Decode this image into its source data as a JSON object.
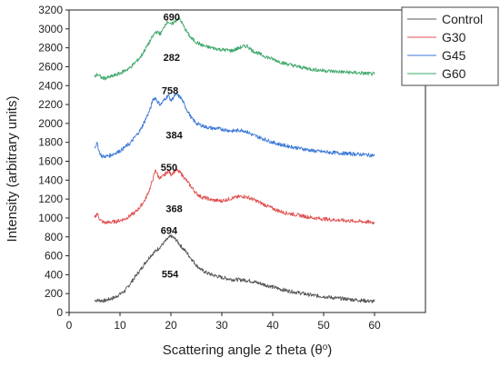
{
  "chart_data": {
    "type": "line",
    "xlabel": "Scattering angle 2 theta (θ",
    "xlabel_sup": "o",
    "xlabel_end": ")",
    "ylabel": "Intensity (arbitrary units)",
    "xlim": [
      0,
      70
    ],
    "ylim": [
      0,
      3200
    ],
    "x_ticks": [
      0,
      10,
      20,
      30,
      40,
      50,
      60
    ],
    "y_ticks": [
      0,
      200,
      400,
      600,
      800,
      1000,
      1200,
      1400,
      1600,
      1800,
      2000,
      2200,
      2400,
      2600,
      2800,
      3000,
      3200
    ],
    "legend_position": "top-right",
    "series": [
      {
        "name": "Control",
        "color": "#555555",
        "x": [
          5,
          7,
          9,
          11,
          13,
          14,
          15,
          16,
          17,
          18,
          19,
          20,
          21,
          22,
          23,
          24,
          25,
          26,
          27,
          28,
          30,
          32,
          34,
          35,
          36,
          38,
          40,
          42,
          45,
          48,
          50,
          52,
          55,
          58,
          60
        ],
        "y": [
          130,
          125,
          160,
          230,
          380,
          450,
          530,
          600,
          650,
          700,
          760,
          810,
          770,
          700,
          640,
          570,
          500,
          450,
          420,
          400,
          370,
          350,
          345,
          340,
          330,
          300,
          270,
          240,
          210,
          180,
          170,
          155,
          140,
          125,
          115
        ]
      },
      {
        "name": "G30",
        "color": "#e05050",
        "x": [
          5,
          5.5,
          6,
          6.5,
          7,
          9,
          11,
          13,
          14,
          15,
          16,
          16.5,
          17,
          17.5,
          18,
          19,
          19.5,
          20,
          21,
          22,
          23,
          24,
          25,
          26,
          27,
          28,
          30,
          32,
          34,
          35,
          36,
          38,
          40,
          42,
          45,
          48,
          50,
          52,
          55,
          58,
          60
        ],
        "y": [
          1000,
          1050,
          990,
          960,
          950,
          960,
          990,
          1060,
          1120,
          1200,
          1330,
          1420,
          1510,
          1440,
          1420,
          1470,
          1500,
          1460,
          1510,
          1470,
          1400,
          1330,
          1260,
          1220,
          1210,
          1190,
          1180,
          1210,
          1230,
          1220,
          1200,
          1150,
          1100,
          1060,
          1030,
          1000,
          990,
          980,
          970,
          960,
          950
        ]
      },
      {
        "name": "G45",
        "color": "#3a78d8",
        "x": [
          5,
          5.5,
          6,
          6.5,
          7,
          8,
          10,
          12,
          14,
          15,
          16,
          16.5,
          17,
          17.5,
          18,
          19,
          19.5,
          20,
          21,
          22,
          23,
          24,
          25,
          26,
          27,
          28,
          30,
          32,
          34,
          35,
          36,
          38,
          40,
          42,
          45,
          48,
          50,
          52,
          55,
          58,
          60
        ],
        "y": [
          1750,
          1790,
          1690,
          1650,
          1650,
          1660,
          1710,
          1790,
          1930,
          2040,
          2160,
          2260,
          2270,
          2220,
          2200,
          2270,
          2300,
          2240,
          2310,
          2270,
          2160,
          2060,
          2000,
          1980,
          1960,
          1950,
          1940,
          1920,
          1930,
          1910,
          1880,
          1840,
          1800,
          1770,
          1740,
          1710,
          1700,
          1690,
          1680,
          1670,
          1660
        ]
      },
      {
        "name": "G60",
        "color": "#3fa86a",
        "x": [
          5,
          5.5,
          6,
          6.5,
          7,
          8,
          10,
          12,
          14,
          15,
          16,
          17,
          17.5,
          18,
          18.5,
          19,
          19.5,
          20,
          21,
          21.5,
          22,
          23,
          24,
          25,
          26,
          27,
          28,
          30,
          32,
          34,
          35,
          36,
          38,
          40,
          42,
          45,
          48,
          50,
          52,
          55,
          58,
          60
        ],
        "y": [
          2490,
          2520,
          2500,
          2480,
          2480,
          2490,
          2530,
          2590,
          2700,
          2790,
          2880,
          2970,
          2960,
          2950,
          3000,
          3060,
          3080,
          3040,
          3090,
          3120,
          3080,
          2980,
          2900,
          2860,
          2830,
          2810,
          2800,
          2780,
          2770,
          2810,
          2820,
          2770,
          2720,
          2680,
          2640,
          2600,
          2570,
          2560,
          2550,
          2540,
          2530,
          2520
        ]
      }
    ],
    "annotations": [
      {
        "text": "690",
        "x": 18.5,
        "y": 3090
      },
      {
        "text": "282",
        "x": 18.5,
        "y": 2660
      },
      {
        "text": "758",
        "x": 18.2,
        "y": 2310
      },
      {
        "text": "384",
        "x": 19.0,
        "y": 1840
      },
      {
        "text": "550",
        "x": 18.0,
        "y": 1500
      },
      {
        "text": "368",
        "x": 19.0,
        "y": 1060
      },
      {
        "text": "694",
        "x": 18.0,
        "y": 830
      },
      {
        "text": "554",
        "x": 18.2,
        "y": 370
      }
    ]
  }
}
